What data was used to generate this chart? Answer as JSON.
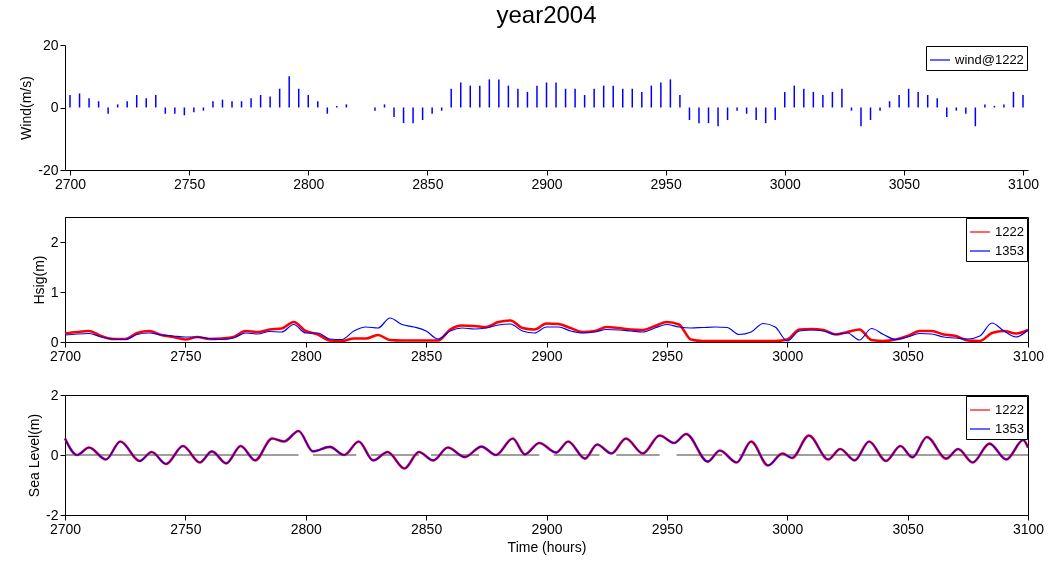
{
  "chart_data": [
    {
      "type": "bar",
      "title": "year2004",
      "ylabel": "Wind(m/s)",
      "xlim": [
        2700,
        3100
      ],
      "xticks": [
        2700,
        2750,
        2800,
        2850,
        2900,
        2950,
        3000,
        3050,
        3100
      ],
      "ylim": [
        -20,
        20
      ],
      "yticks": [
        -20,
        0,
        20
      ],
      "legend": "top right",
      "x": [
        2700,
        2704,
        2708,
        2712,
        2716,
        2720,
        2724,
        2728,
        2732,
        2736,
        2740,
        2744,
        2748,
        2752,
        2756,
        2760,
        2764,
        2768,
        2772,
        2776,
        2780,
        2784,
        2788,
        2792,
        2796,
        2800,
        2804,
        2808,
        2812,
        2816,
        2820,
        2824,
        2828,
        2832,
        2836,
        2840,
        2844,
        2848,
        2852,
        2856,
        2860,
        2864,
        2868,
        2872,
        2876,
        2880,
        2884,
        2888,
        2892,
        2896,
        2900,
        2904,
        2908,
        2912,
        2916,
        2920,
        2924,
        2928,
        2932,
        2936,
        2940,
        2944,
        2948,
        2952,
        2956,
        2960,
        2964,
        2968,
        2972,
        2976,
        2980,
        2984,
        2988,
        2992,
        2996,
        3000,
        3004,
        3008,
        3012,
        3016,
        3020,
        3024,
        3028,
        3032,
        3036,
        3040,
        3044,
        3048,
        3052,
        3056,
        3060,
        3064,
        3068,
        3072,
        3076,
        3080,
        3084,
        3088,
        3092,
        3096,
        3100
      ],
      "series": [
        {
          "name": "wind@1222",
          "color": "#0000ff",
          "values": [
            4,
            4.5,
            3,
            2,
            -2,
            1,
            2,
            4,
            3,
            4,
            -2,
            -2,
            -2.5,
            -1.5,
            -1,
            2,
            2.5,
            2,
            2,
            3,
            4,
            3.5,
            6,
            10,
            6,
            4,
            2,
            -2,
            0.5,
            1,
            0,
            0,
            -1,
            1,
            -3,
            -5,
            -5,
            -4,
            -2,
            -1,
            6,
            8,
            7,
            7,
            9,
            9,
            7,
            6,
            5,
            7,
            8,
            8,
            6,
            6,
            4,
            6,
            7,
            7,
            6,
            6,
            5,
            7,
            8,
            9,
            4,
            -4,
            -5,
            -5,
            -6,
            -4,
            -1,
            -2,
            -4,
            -5,
            -4,
            5,
            7,
            6,
            5,
            4,
            5,
            6,
            -1,
            -6,
            -4,
            -1,
            2,
            4,
            6,
            5,
            4,
            3,
            -3,
            -1,
            -2,
            -6,
            1,
            0.5,
            1,
            5,
            4
          ]
        }
      ]
    },
    {
      "type": "line",
      "ylabel": "Hsig(m)",
      "xlim": [
        2700,
        3100
      ],
      "xticks": [
        2700,
        2750,
        2800,
        2850,
        2900,
        2950,
        3000,
        3050,
        3100
      ],
      "ylim": [
        0,
        2.5
      ],
      "yticks": [
        0,
        1,
        2
      ],
      "legend": "top right",
      "x": [
        2700,
        2705,
        2710,
        2715,
        2720,
        2725,
        2730,
        2735,
        2740,
        2745,
        2750,
        2755,
        2760,
        2765,
        2770,
        2775,
        2780,
        2785,
        2790,
        2795,
        2800,
        2805,
        2810,
        2815,
        2820,
        2825,
        2830,
        2835,
        2840,
        2845,
        2850,
        2855,
        2860,
        2865,
        2870,
        2875,
        2880,
        2885,
        2890,
        2895,
        2900,
        2905,
        2910,
        2915,
        2920,
        2925,
        2930,
        2935,
        2940,
        2945,
        2950,
        2955,
        2960,
        2965,
        2970,
        2975,
        2980,
        2985,
        2990,
        2995,
        3000,
        3005,
        3010,
        3015,
        3020,
        3025,
        3030,
        3035,
        3040,
        3045,
        3050,
        3055,
        3060,
        3065,
        3070,
        3075,
        3080,
        3085,
        3090,
        3095,
        3100
      ],
      "series": [
        {
          "name": "1222",
          "color": "#ff0000",
          "values": [
            0.17,
            0.2,
            0.22,
            0.12,
            0.06,
            0.06,
            0.18,
            0.22,
            0.14,
            0.1,
            0.05,
            0.1,
            0.06,
            0.07,
            0.1,
            0.22,
            0.2,
            0.25,
            0.27,
            0.4,
            0.22,
            0.15,
            0.03,
            0.02,
            0.07,
            0.07,
            0.14,
            0.04,
            0.03,
            0.03,
            0.03,
            0.03,
            0.25,
            0.33,
            0.32,
            0.3,
            0.4,
            0.43,
            0.28,
            0.25,
            0.37,
            0.36,
            0.28,
            0.2,
            0.22,
            0.3,
            0.28,
            0.25,
            0.24,
            0.32,
            0.4,
            0.35,
            0.05,
            0.02,
            0.02,
            0.02,
            0.02,
            0.02,
            0.02,
            0.02,
            0.05,
            0.25,
            0.26,
            0.24,
            0.15,
            0.2,
            0.25,
            0.04,
            0.02,
            0.05,
            0.12,
            0.22,
            0.22,
            0.15,
            0.12,
            0.03,
            0.02,
            0.18,
            0.22,
            0.17,
            0.24
          ]
        },
        {
          "name": "1353",
          "color": "#0000ff",
          "values": [
            0.14,
            0.16,
            0.17,
            0.1,
            0.06,
            0.05,
            0.15,
            0.18,
            0.14,
            0.12,
            0.1,
            0.1,
            0.07,
            0.05,
            0.08,
            0.18,
            0.16,
            0.21,
            0.2,
            0.35,
            0.18,
            0.18,
            0.06,
            0.05,
            0.22,
            0.3,
            0.28,
            0.48,
            0.35,
            0.3,
            0.22,
            0.06,
            0.22,
            0.28,
            0.26,
            0.28,
            0.34,
            0.36,
            0.22,
            0.18,
            0.3,
            0.3,
            0.22,
            0.18,
            0.2,
            0.25,
            0.24,
            0.22,
            0.2,
            0.28,
            0.35,
            0.3,
            0.28,
            0.29,
            0.3,
            0.29,
            0.15,
            0.2,
            0.37,
            0.3,
            0.02,
            0.22,
            0.24,
            0.22,
            0.15,
            0.18,
            0.04,
            0.27,
            0.15,
            0.05,
            0.1,
            0.17,
            0.16,
            0.1,
            0.08,
            0.06,
            0.12,
            0.38,
            0.22,
            0.1,
            0.24
          ]
        }
      ]
    },
    {
      "type": "line",
      "ylabel": "Sea Level(m)",
      "xlabel": "Time (hours)",
      "xlim": [
        2700,
        3100
      ],
      "xticks": [
        2700,
        2750,
        2800,
        2850,
        2900,
        2950,
        3000,
        3050,
        3100
      ],
      "ylim": [
        -2,
        2
      ],
      "yticks": [
        -2,
        0,
        2
      ],
      "legend": "top right",
      "series": [
        {
          "color": "#404040",
          "x": [
            2700,
            2797,
            2800,
            2803,
            2821,
            2824,
            2827,
            2847,
            2850,
            2852,
            2872,
            2875,
            2878,
            2897,
            2900,
            2903,
            2922,
            2925,
            2929,
            2947,
            2950,
            2954,
            2973,
            2976,
            2980,
            3100
          ],
          "values": [
            0,
            0,
            null,
            0,
            0,
            null,
            0,
            0,
            null,
            0,
            0,
            null,
            0,
            0,
            null,
            0,
            0,
            null,
            0,
            0,
            null,
            0,
            0,
            null,
            0,
            0
          ]
        },
        {
          "name": "1222",
          "color": "#ff0000",
          "x": [
            2700,
            2705,
            2710,
            2717,
            2723,
            2731,
            2736,
            2742,
            2749,
            2756,
            2761,
            2767,
            2773,
            2779,
            2786,
            2791,
            2797,
            2803,
            2810,
            2816,
            2822,
            2828,
            2834,
            2841,
            2847,
            2853,
            2859,
            2866,
            2873,
            2879,
            2886,
            2891,
            2897,
            2904,
            2909,
            2916,
            2921,
            2927,
            2933,
            2940,
            2947,
            2953,
            2958,
            2967,
            2972,
            2979,
            2985,
            2992,
            2998,
            3002,
            3009,
            3017,
            3022,
            3028,
            3034,
            3041,
            3047,
            3052,
            3058,
            3066,
            3071,
            3077,
            3084,
            3091,
            3098,
            3100
          ],
          "values": [
            0.55,
            0,
            0.25,
            -0.15,
            0.45,
            -0.2,
            0.1,
            -0.3,
            0.3,
            -0.25,
            0.12,
            -0.28,
            0.3,
            -0.18,
            0.55,
            0.45,
            0.8,
            0.12,
            0.27,
            0,
            0.45,
            -0.18,
            0.1,
            -0.45,
            0.1,
            -0.18,
            0.25,
            -0.07,
            0.28,
            0,
            0.55,
            0.02,
            0.4,
            0.08,
            0.45,
            -0.12,
            0.35,
            0.05,
            0.55,
            0.05,
            0.65,
            0.4,
            0.7,
            -0.22,
            0.15,
            -0.25,
            0.45,
            -0.35,
            0.05,
            -0.1,
            0.65,
            -0.15,
            0.2,
            -0.18,
            0.45,
            -0.2,
            0.3,
            -0.08,
            0.6,
            -0.12,
            0.2,
            -0.25,
            0.38,
            -0.15,
            0.5,
            0.25
          ]
        },
        {
          "name": "1353",
          "color": "#0000ff",
          "x": [
            2700,
            2705,
            2710,
            2717,
            2723,
            2731,
            2736,
            2742,
            2749,
            2756,
            2761,
            2767,
            2773,
            2779,
            2786,
            2791,
            2797,
            2803,
            2810,
            2816,
            2822,
            2828,
            2834,
            2841,
            2847,
            2853,
            2859,
            2866,
            2873,
            2879,
            2886,
            2891,
            2897,
            2904,
            2909,
            2916,
            2921,
            2927,
            2933,
            2940,
            2947,
            2953,
            2958,
            2967,
            2972,
            2979,
            2985,
            2992,
            2998,
            3002,
            3009,
            3017,
            3022,
            3028,
            3034,
            3041,
            3047,
            3052,
            3058,
            3066,
            3071,
            3077,
            3084,
            3091,
            3098,
            3100
          ],
          "values": [
            0.55,
            0,
            0.25,
            -0.15,
            0.45,
            -0.2,
            0.1,
            -0.3,
            0.3,
            -0.25,
            0.12,
            -0.28,
            0.3,
            -0.18,
            0.55,
            0.45,
            0.8,
            0.12,
            0.27,
            0,
            0.45,
            -0.18,
            0.1,
            -0.45,
            0.1,
            -0.18,
            0.25,
            -0.07,
            0.28,
            0,
            0.55,
            0.02,
            0.4,
            0.08,
            0.45,
            -0.12,
            0.35,
            0.05,
            0.55,
            0.05,
            0.65,
            0.4,
            0.7,
            -0.22,
            0.15,
            -0.25,
            0.45,
            -0.35,
            0.05,
            -0.1,
            0.65,
            -0.15,
            0.2,
            -0.18,
            0.45,
            -0.2,
            0.3,
            -0.08,
            0.6,
            -0.12,
            0.2,
            -0.25,
            0.38,
            -0.15,
            0.5,
            0.25
          ]
        }
      ]
    }
  ]
}
